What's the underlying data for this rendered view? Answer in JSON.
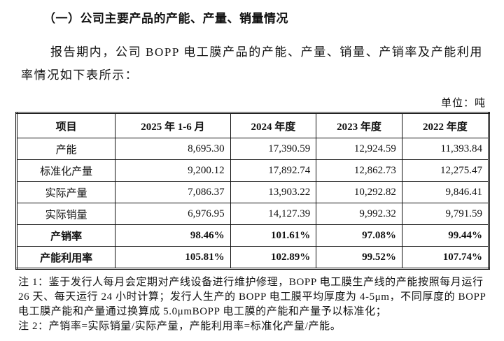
{
  "heading": "（一）公司主要产品的产能、产量、销量情况",
  "paragraph": "报告期内，公司 BOPP 电工膜产品的产能、产量、销量、产销率及产能利用率情况如下表所示：",
  "unit": "单位：吨",
  "table": {
    "header": [
      "项目",
      "2025 年 1-6 月",
      "2024 年度",
      "2023 年度",
      "2022 年度"
    ],
    "rows": [
      [
        "产能",
        "8,695.30",
        "17,390.59",
        "12,924.59",
        "11,393.84"
      ],
      [
        "标准化产量",
        "9,200.12",
        "17,892.74",
        "12,862.73",
        "12,275.47"
      ],
      [
        "实际产量",
        "7,086.37",
        "13,903.22",
        "10,292.82",
        "9,846.41"
      ],
      [
        "实际销量",
        "6,976.95",
        "14,127.39",
        "9,992.32",
        "9,791.59"
      ],
      [
        "产销率",
        "98.46%",
        "101.61%",
        "97.08%",
        "99.44%"
      ],
      [
        "产能利用率",
        "105.81%",
        "102.89%",
        "99.52%",
        "107.74%"
      ]
    ]
  },
  "notes": [
    "注 1：鉴于发行人每月会定期对产线设备进行维护修理，BOPP 电工膜生产线的产能按照每月运行 26 天、每天运行 24 小时计算；发行人生产的 BOPP 电工膜平均厚度为 4-5μm，不同厚度的 BOPP 电工膜产能和产量通过换算成 5.0μmBOPP 电工膜的产能和产量予以标准化；",
    "注 2：产销率=实际销量/实际产量，产能利用率=标准化产量/产能。"
  ]
}
